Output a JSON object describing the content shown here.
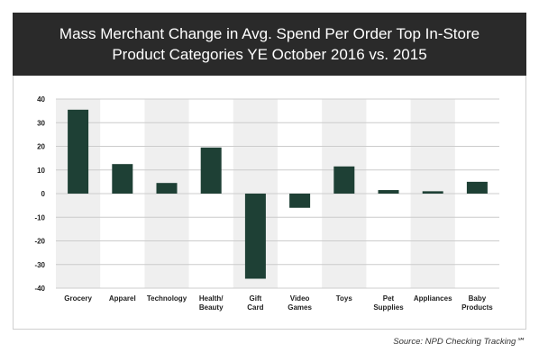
{
  "chart_data": {
    "type": "bar",
    "title_lines": [
      "Mass Merchant Change in Avg. Spend Per Order Top In-Store",
      "Product Categories YE October 2016 vs. 2015"
    ],
    "categories": [
      [
        "Grocery"
      ],
      [
        "Apparel"
      ],
      [
        "Technology"
      ],
      [
        "Health/",
        "Beauty"
      ],
      [
        "Gift",
        "Card"
      ],
      [
        "Video",
        "Games"
      ],
      [
        "Toys"
      ],
      [
        "Pet",
        "Supplies"
      ],
      [
        "Appliances"
      ],
      [
        "Baby",
        "Products"
      ]
    ],
    "values": [
      35.5,
      12.5,
      4.5,
      19.5,
      -36,
      -6,
      11.5,
      1.5,
      1,
      5
    ],
    "yticks": [
      40,
      30,
      20,
      10,
      0,
      -10,
      -20,
      -30,
      -40
    ],
    "ylim": [
      -40,
      40
    ],
    "grid": true,
    "bar_color": "#1e4035",
    "band_color": "#efefef",
    "source": "Source: NPD Checking Tracking℠"
  }
}
